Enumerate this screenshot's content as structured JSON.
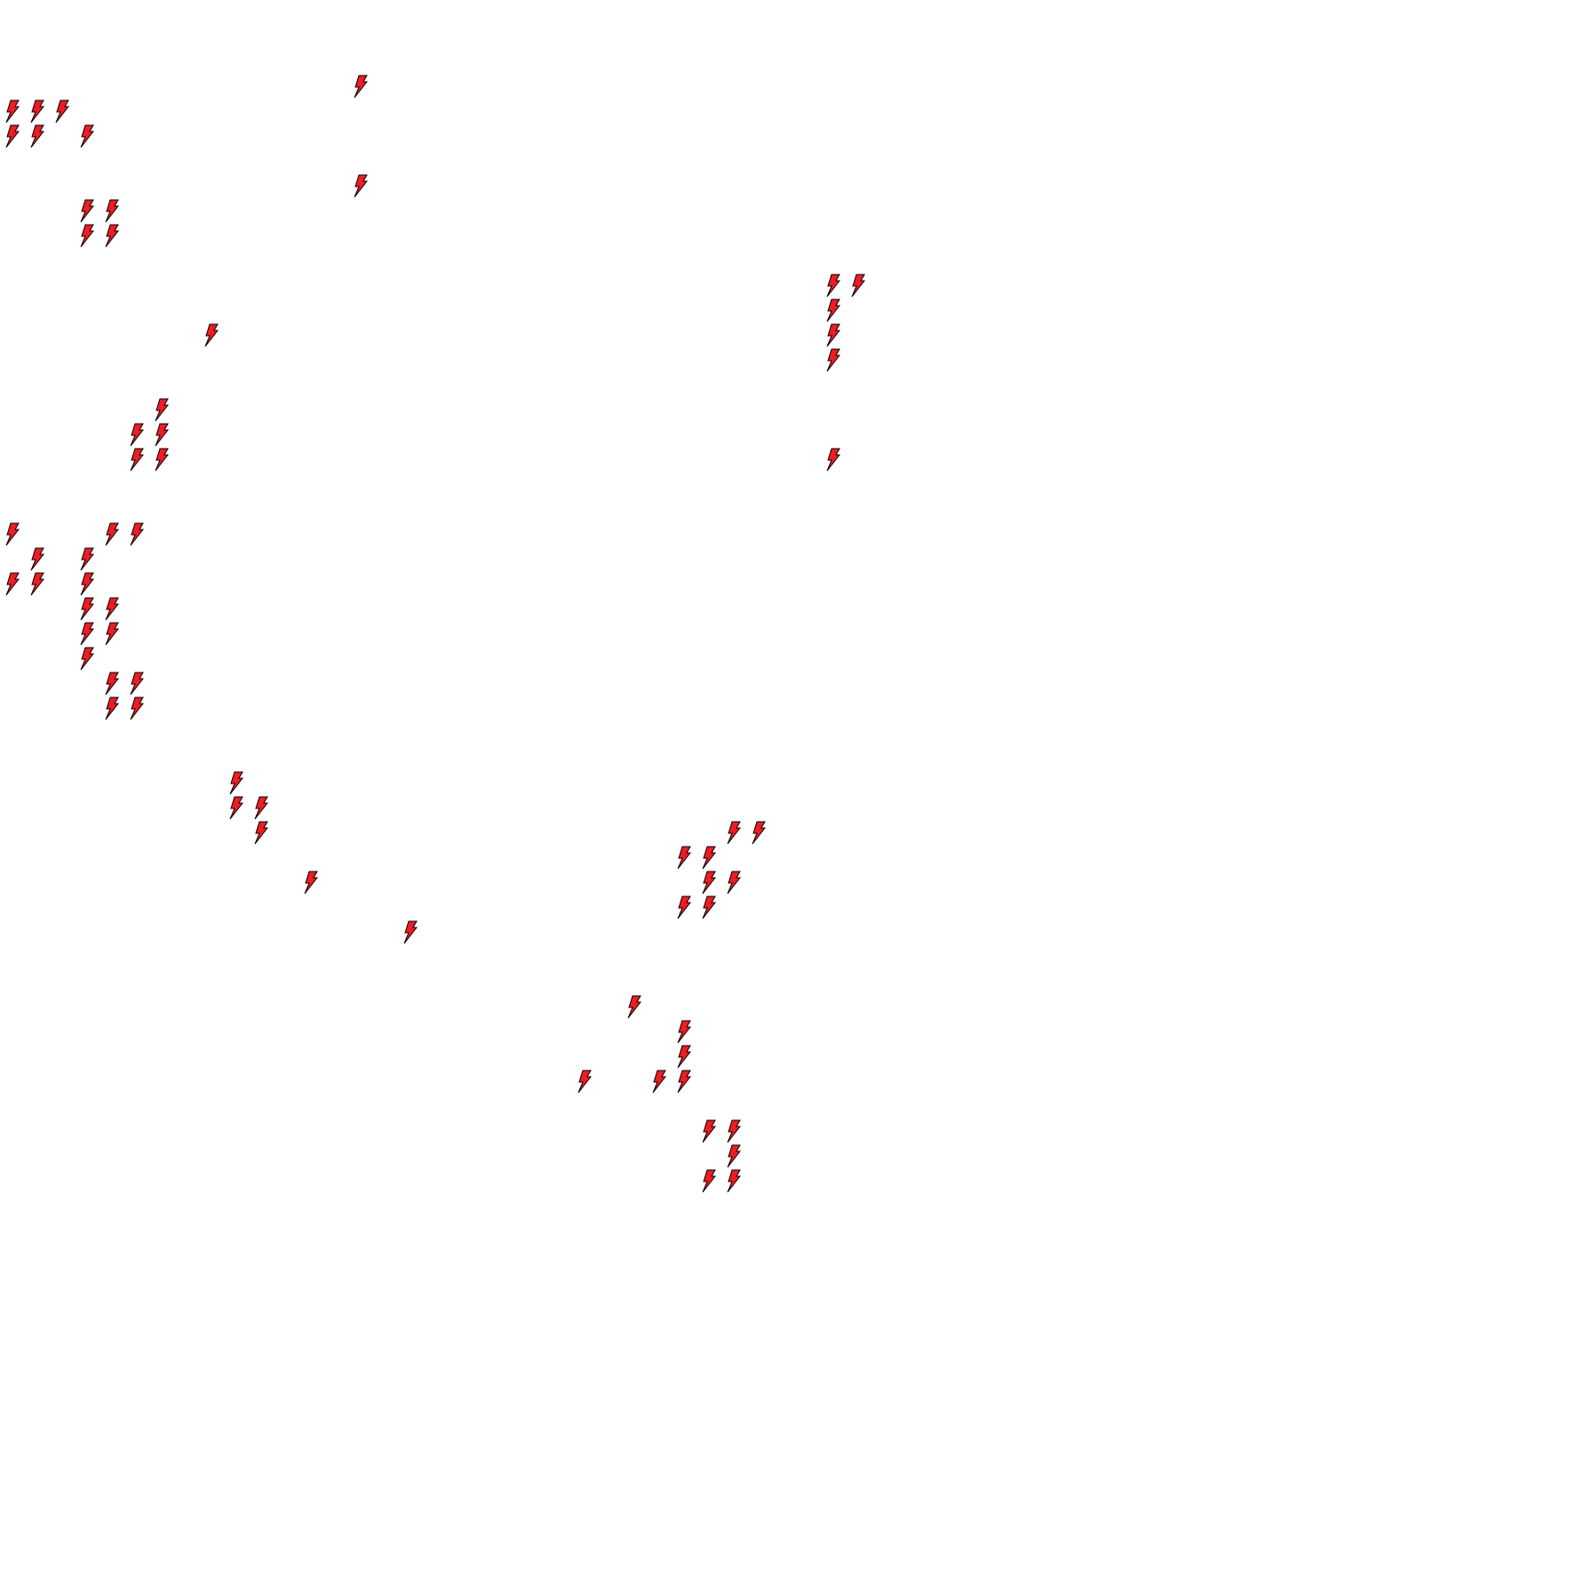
{
  "map": {
    "background_color": "#ffffff",
    "marker": {
      "icon": "lightning-bolt-icon",
      "fill_color": "#ee1c24",
      "stroke_color": "#000000"
    }
  }
}
